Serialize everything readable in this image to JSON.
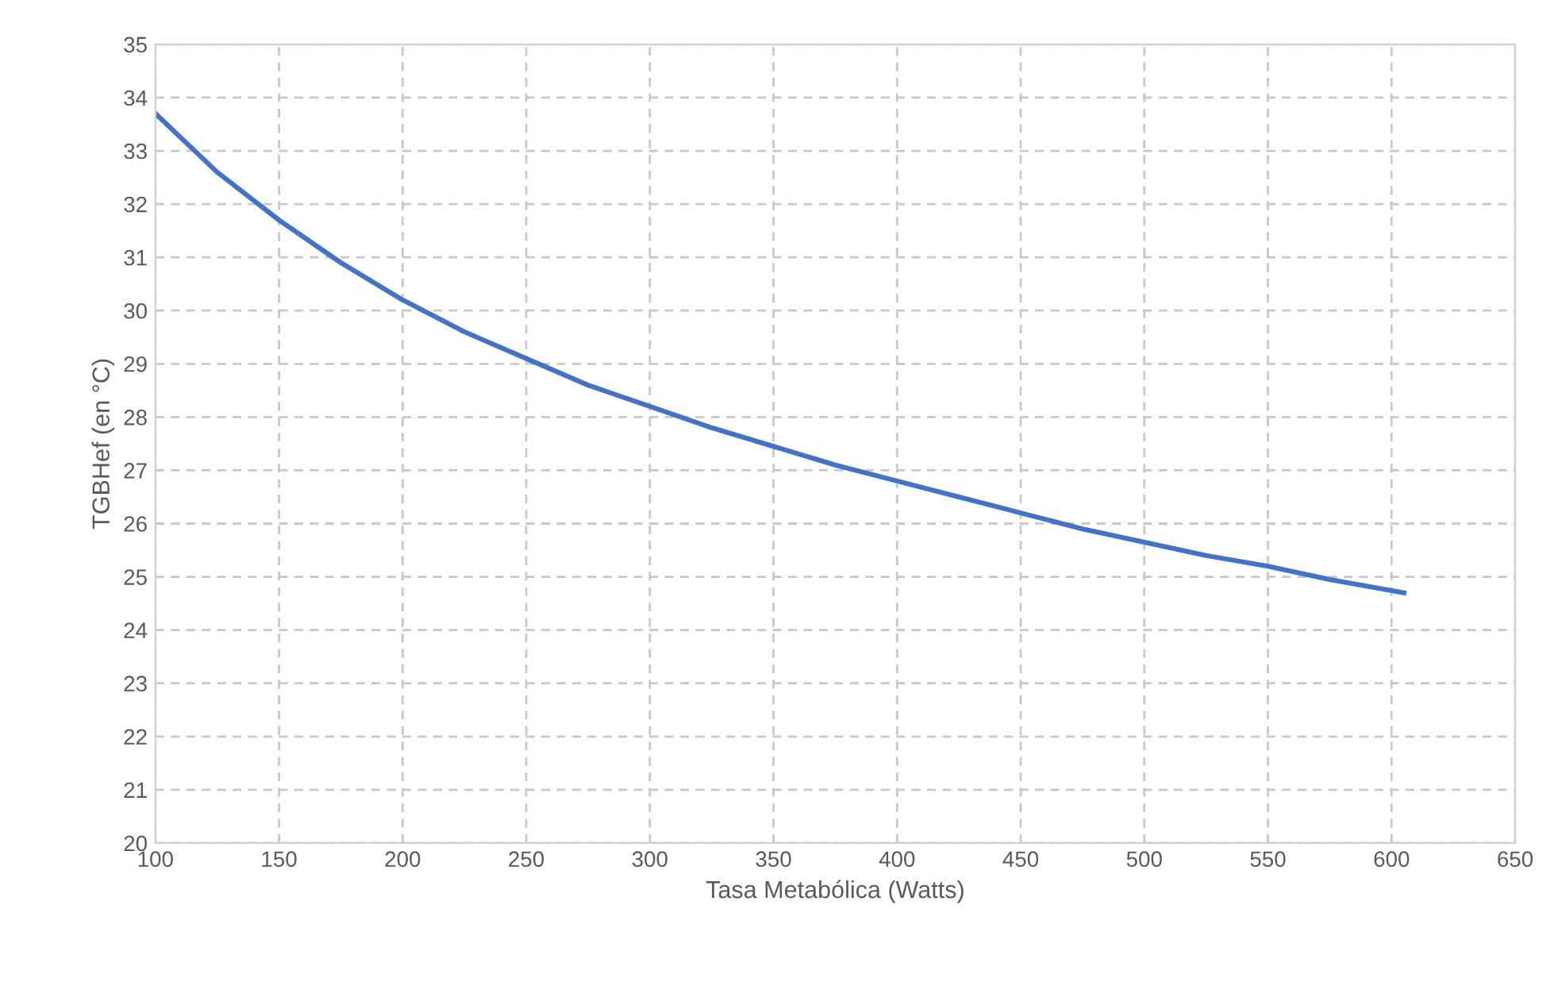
{
  "chart_data": {
    "type": "line",
    "xlabel": "Tasa Metabólica (Watts)",
    "ylabel": "TGBHef (en °C)",
    "series": [
      {
        "color": "#4472c4",
        "x": [
          100,
          125,
          150,
          175,
          200,
          225,
          250,
          275,
          300,
          325,
          350,
          375,
          400,
          425,
          450,
          475,
          500,
          525,
          550,
          575,
          605
        ],
        "values": [
          33.7,
          32.6,
          31.7,
          30.9,
          30.2,
          29.6,
          29.1,
          28.6,
          28.2,
          27.8,
          27.45,
          27.1,
          26.8,
          26.5,
          26.2,
          25.9,
          25.65,
          25.4,
          25.2,
          24.95,
          24.7
        ]
      }
    ],
    "xlim": [
      100,
      650
    ],
    "xticks": [
      100,
      150,
      200,
      250,
      300,
      350,
      400,
      450,
      500,
      550,
      600,
      650
    ],
    "ylim": [
      20,
      35
    ],
    "yticks": [
      20,
      21,
      22,
      23,
      24,
      25,
      26,
      27,
      28,
      29,
      30,
      31,
      32,
      33,
      34,
      35
    ],
    "grid": true,
    "marker": "none",
    "line_style": "solid",
    "legend": false
  }
}
